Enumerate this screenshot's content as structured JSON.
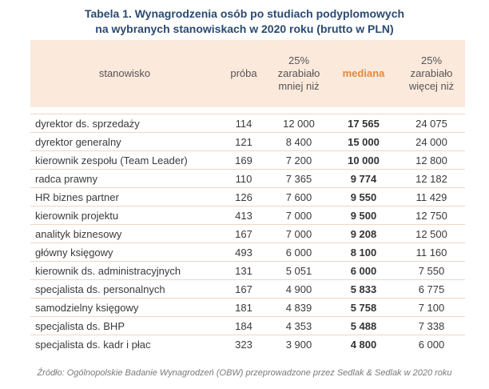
{
  "title": {
    "line1": "Tabela 1. Wynagrodzenia osób po studiach podyplomowych",
    "line2": "na wybranych stanowiskach w 2020 roku (brutto w PLN)"
  },
  "table": {
    "headers": {
      "position": "stanowisko",
      "sample": "próba",
      "low_1": "25%",
      "low_2": "zarabiało",
      "low_3": "mniej niż",
      "median": "mediana",
      "high_1": "25%",
      "high_2": "zarabiało",
      "high_3": "więcej niż"
    },
    "rows": [
      {
        "position": "dyrektor ds. sprzedaży",
        "sample": "114",
        "low": "12 000",
        "median": "17 565",
        "high": "24 075"
      },
      {
        "position": "dyrektor generalny",
        "sample": "121",
        "low": "8 400",
        "median": "15 000",
        "high": "24 000"
      },
      {
        "position": "kierownik zespołu (Team Leader)",
        "sample": "169",
        "low": "7 200",
        "median": "10 000",
        "high": "12 800"
      },
      {
        "position": "radca prawny",
        "sample": "110",
        "low": "7 365",
        "median": "9 774",
        "high": "12 182"
      },
      {
        "position": "HR biznes partner",
        "sample": "126",
        "low": "7 600",
        "median": "9 550",
        "high": "11 429"
      },
      {
        "position": "kierownik projektu",
        "sample": "413",
        "low": "7 000",
        "median": "9 500",
        "high": "12 750"
      },
      {
        "position": "analityk biznesowy",
        "sample": "167",
        "low": "7 000",
        "median": "9 208",
        "high": "12 500"
      },
      {
        "position": "główny księgowy",
        "sample": "493",
        "low": "6 000",
        "median": "8 100",
        "high": "11 160"
      },
      {
        "position": "kierownik ds. administracyjnych",
        "sample": "131",
        "low": "5 051",
        "median": "6 000",
        "high": "7 550"
      },
      {
        "position": "specjalista ds. personalnych",
        "sample": "167",
        "low": "4 900",
        "median": "5 833",
        "high": "6 775"
      },
      {
        "position": "samodzielny księgowy",
        "sample": "181",
        "low": "4 839",
        "median": "5 758",
        "high": "7 100"
      },
      {
        "position": "specjalista ds.  BHP",
        "sample": "184",
        "low": "4 353",
        "median": "5 488",
        "high": "7 338"
      },
      {
        "position": "specjalista ds. kadr i płac",
        "sample": "323",
        "low": "3 900",
        "median": "4 800",
        "high": "6 000"
      }
    ]
  },
  "source": "Źródło: Ogólnopolskie Badanie Wynagrodzeń (OBW) przeprowadzone  przez  Sedlak & Sedlak w 2020 roku"
}
